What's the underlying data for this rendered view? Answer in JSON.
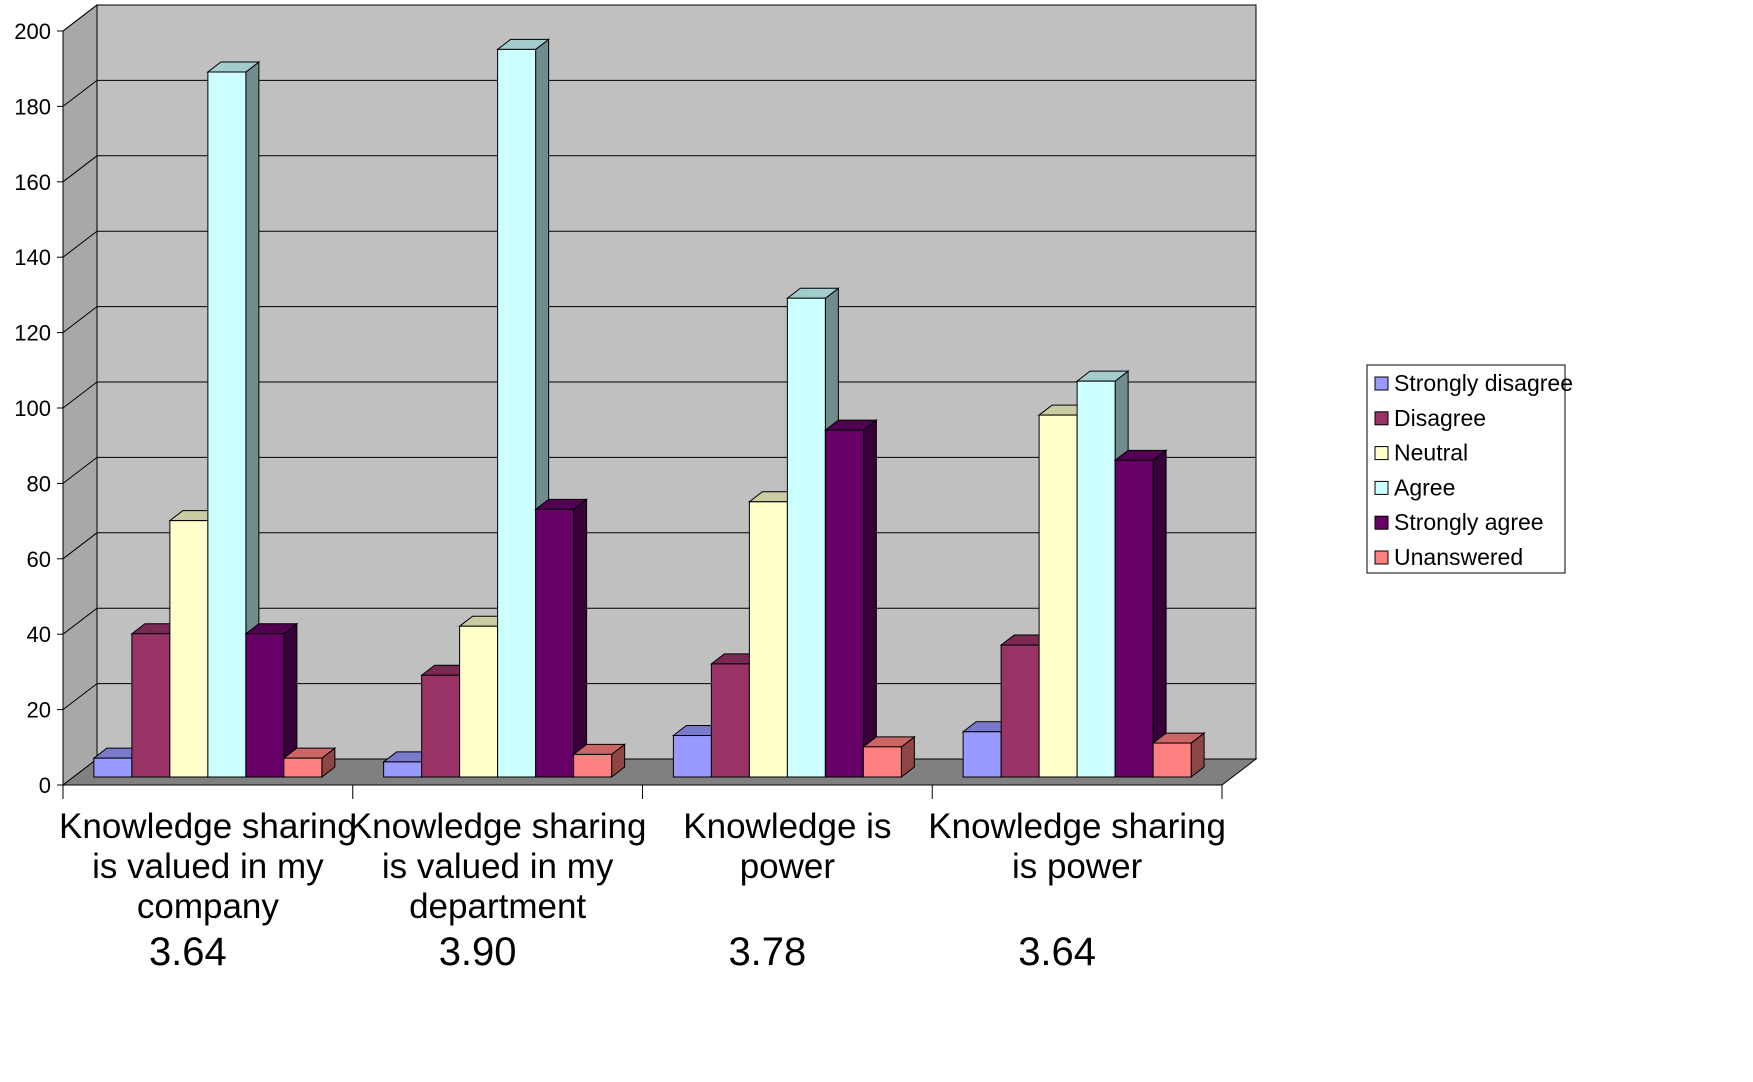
{
  "chart_data": {
    "type": "bar",
    "style": "3d-clustered-column",
    "categories": [
      [
        "Knowledge sharing",
        "is valued in my",
        "company"
      ],
      [
        "Knowledge sharing",
        "is valued in my",
        "department"
      ],
      [
        "Knowledge is",
        "power"
      ],
      [
        "Knowledge sharing",
        "is power"
      ]
    ],
    "scores": [
      "3.64",
      "3.90",
      "3.78",
      "3.64"
    ],
    "series": [
      {
        "name": "Strongly disagree",
        "color": "#9999ff",
        "values": [
          5,
          4,
          11,
          12
        ]
      },
      {
        "name": "Disagree",
        "color": "#993366",
        "values": [
          38,
          27,
          30,
          35
        ]
      },
      {
        "name": "Neutral",
        "color": "#ffffcc",
        "values": [
          68,
          40,
          73,
          96
        ]
      },
      {
        "name": "Agree",
        "color": "#ccffff",
        "values": [
          187,
          193,
          127,
          105
        ]
      },
      {
        "name": "Strongly agree",
        "color": "#660066",
        "values": [
          38,
          71,
          92,
          84
        ]
      },
      {
        "name": "Unanswered",
        "color": "#ff8080",
        "values": [
          5,
          6,
          8,
          9
        ]
      }
    ],
    "y_ticks": [
      "0",
      "20",
      "40",
      "60",
      "80",
      "100",
      "120",
      "140",
      "160",
      "180",
      "200"
    ],
    "ylim": [
      0,
      200
    ],
    "grid": true,
    "wall_color": "#c0c0c0",
    "floor_color": "#808080",
    "legend_position": "right"
  }
}
